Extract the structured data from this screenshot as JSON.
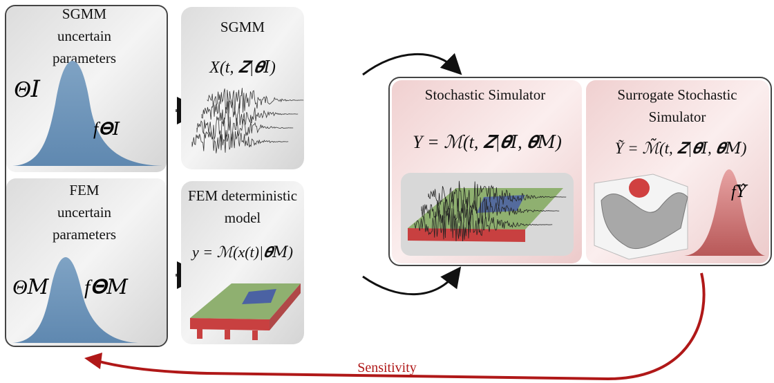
{
  "sgmm_parameters": {
    "title_lines": [
      "SGMM",
      "uncertain",
      "parameters"
    ],
    "variable": "Θ𝐼",
    "density": "f𝚯𝐼"
  },
  "fem_parameters": {
    "title_lines": [
      "FEM",
      "uncertain",
      "parameters"
    ],
    "variable": "Θ𝑀",
    "density": "f𝚯𝑀"
  },
  "sgmm_model": {
    "title": "SGMM",
    "formula": "X(t, 𝒁|𝜽𝐼)"
  },
  "fem_model": {
    "title_lines": [
      "FEM deterministic",
      "model"
    ],
    "formula": "y = ℳ(x(t)|𝜽𝑀)"
  },
  "stochastic_simulator": {
    "title": "Stochastic Simulator",
    "formula": "Y = ℳ(t, 𝒁|𝜽𝐼, 𝜽𝑀)"
  },
  "surrogate_simulator": {
    "title_lines": [
      "Surrogate Stochastic",
      "Simulator"
    ],
    "formula": "Ỹ = ℳ̃(t, 𝒁̃|𝜽𝐼, 𝜽𝑀)",
    "density": "f𝑌̂"
  },
  "feedback": {
    "label": "Sensitivity"
  }
}
